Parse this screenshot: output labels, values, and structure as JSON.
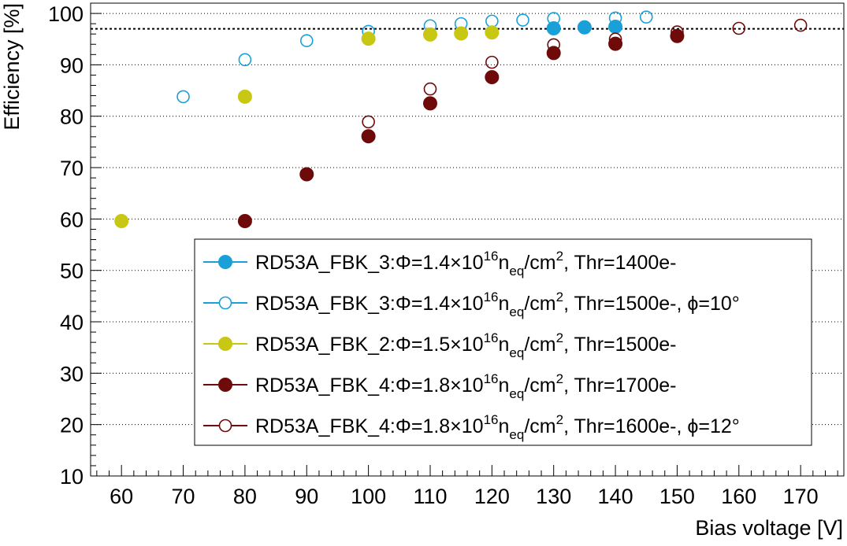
{
  "chart_data": {
    "type": "scatter",
    "title": "",
    "xlabel": "Bias voltage [V]",
    "ylabel": "Efficiency [%]",
    "xlim": [
      55,
      177
    ],
    "ylim": [
      10,
      102
    ],
    "x_ticks": [
      60,
      70,
      80,
      90,
      100,
      110,
      120,
      130,
      140,
      150,
      160,
      170
    ],
    "y_ticks": [
      10,
      20,
      30,
      40,
      50,
      60,
      70,
      80,
      90,
      100
    ],
    "grid": "horizontal-dotted",
    "reference_line": 97,
    "legend_position": "lower-right",
    "series": [
      {
        "name": "RD53A_FBK_3",
        "phi": "1.4",
        "thr": "Thr=1400e-",
        "angle": "",
        "color": "#1aa0d8",
        "filled": true,
        "x": [
          130,
          135,
          140
        ],
        "y": [
          97.1,
          97.3,
          97.4
        ]
      },
      {
        "name": "RD53A_FBK_3",
        "phi": "1.4",
        "thr": "Thr=1500e-",
        "angle": "=10°",
        "color": "#1aa0d8",
        "filled": false,
        "x": [
          70,
          80,
          90,
          100,
          110,
          115,
          120,
          125,
          130,
          135,
          140,
          145
        ],
        "y": [
          83.8,
          91.0,
          94.7,
          96.5,
          97.6,
          98.0,
          98.5,
          98.7,
          99.0,
          97.3,
          99.1,
          99.3
        ]
      },
      {
        "name": "RD53A_FBK_2",
        "phi": "1.5",
        "thr": "Thr=1500e-",
        "angle": "",
        "color": "#c8c814",
        "filled": true,
        "x": [
          60,
          80,
          100,
          110,
          115,
          120
        ],
        "y": [
          59.6,
          83.8,
          95.1,
          95.9,
          96.1,
          96.3
        ]
      },
      {
        "name": "RD53A_FBK_4",
        "phi": "1.8",
        "thr": "Thr=1700e-",
        "angle": "",
        "color": "#6e0a0a",
        "filled": true,
        "x": [
          80,
          90,
          100,
          110,
          120,
          130,
          140,
          150
        ],
        "y": [
          59.6,
          68.7,
          76.1,
          82.5,
          87.6,
          92.3,
          94.1,
          95.6
        ]
      },
      {
        "name": "RD53A_FBK_4",
        "phi": "1.8",
        "thr": "Thr=1600e-",
        "angle": "=12°",
        "color": "#6e0a0a",
        "filled": false,
        "x": [
          100,
          110,
          120,
          130,
          140,
          150,
          160,
          170
        ],
        "y": [
          78.9,
          85.3,
          90.5,
          93.9,
          95.0,
          96.4,
          97.1,
          97.7
        ]
      }
    ],
    "legend_fixed": {
      "phi_symbol": "Φ",
      "times_ten": "=",
      "times_symbol": "×10",
      "exponent": "16",
      "n": "n",
      "subscript": "eq",
      "unit": "/cm",
      "unit_exp": "2",
      "sep": ", ",
      "sep2": ", ",
      "angle_symbol": "ϕ",
      "colon": ":"
    }
  }
}
